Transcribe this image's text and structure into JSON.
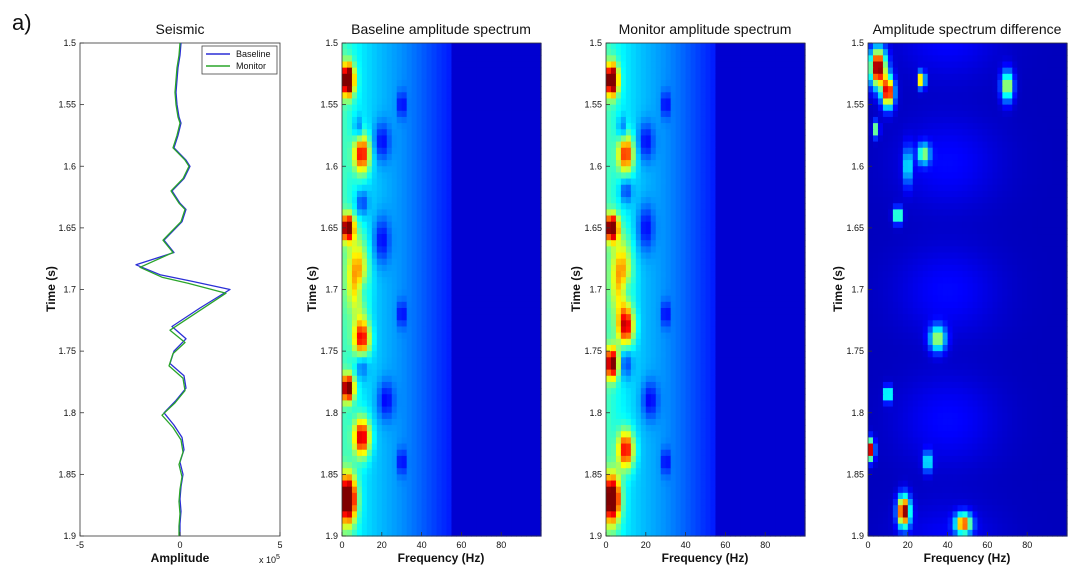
{
  "figure": {
    "panel_label": "a)"
  },
  "chart_data": [
    {
      "type": "line",
      "title": "Seismic",
      "xlabel": "Amplitude",
      "ylabel": "Time (s)",
      "xlim": [
        -5,
        5
      ],
      "ylim": [
        1.5,
        1.9
      ],
      "y_reversed": true,
      "x_ticks": [
        "-5",
        "0",
        "5"
      ],
      "x_exponent_label": "x 10",
      "x_exponent_power": "5",
      "y_ticks": [
        "1.5",
        "1.55",
        "1.6",
        "1.65",
        "1.7",
        "1.75",
        "1.8",
        "1.85",
        "1.9"
      ],
      "legend_position": "top-right",
      "series": [
        {
          "name": "Baseline",
          "color": "#2b2fd6",
          "points": [
            [
              0.05,
              1.5
            ],
            [
              0.0,
              1.51
            ],
            [
              -0.1,
              1.52
            ],
            [
              -0.15,
              1.53
            ],
            [
              -0.2,
              1.54
            ],
            [
              -0.15,
              1.55
            ],
            [
              -0.05,
              1.56
            ],
            [
              0.05,
              1.565
            ],
            [
              -0.1,
              1.575
            ],
            [
              -0.3,
              1.585
            ],
            [
              0.3,
              1.595
            ],
            [
              0.5,
              1.6
            ],
            [
              0.2,
              1.61
            ],
            [
              -0.4,
              1.62
            ],
            [
              0.0,
              1.63
            ],
            [
              0.3,
              1.635
            ],
            [
              0.1,
              1.645
            ],
            [
              -0.5,
              1.655
            ],
            [
              -0.8,
              1.66
            ],
            [
              -0.3,
              1.67
            ],
            [
              -2.2,
              1.68
            ],
            [
              -1.0,
              1.688
            ],
            [
              0.5,
              1.693
            ],
            [
              2.5,
              1.7
            ],
            [
              1.0,
              1.715
            ],
            [
              -0.4,
              1.73
            ],
            [
              0.3,
              1.74
            ],
            [
              -0.3,
              1.75
            ],
            [
              -0.5,
              1.76
            ],
            [
              0.2,
              1.77
            ],
            [
              0.3,
              1.78
            ],
            [
              -0.2,
              1.79
            ],
            [
              -0.8,
              1.8
            ],
            [
              -0.3,
              1.81
            ],
            [
              0.1,
              1.82
            ],
            [
              0.2,
              1.83
            ],
            [
              0.0,
              1.84
            ],
            [
              0.15,
              1.85
            ],
            [
              0.05,
              1.86
            ],
            [
              0.0,
              1.87
            ],
            [
              0.05,
              1.88
            ],
            [
              0.0,
              1.89
            ],
            [
              0.0,
              1.9
            ]
          ]
        },
        {
          "name": "Monitor",
          "color": "#2aa52a",
          "points": [
            [
              0.0,
              1.5
            ],
            [
              -0.05,
              1.51
            ],
            [
              -0.15,
              1.52
            ],
            [
              -0.2,
              1.53
            ],
            [
              -0.25,
              1.54
            ],
            [
              -0.2,
              1.55
            ],
            [
              -0.1,
              1.56
            ],
            [
              0.0,
              1.565
            ],
            [
              -0.15,
              1.575
            ],
            [
              -0.35,
              1.585
            ],
            [
              0.25,
              1.595
            ],
            [
              0.45,
              1.6
            ],
            [
              0.15,
              1.61
            ],
            [
              -0.45,
              1.62
            ],
            [
              -0.05,
              1.63
            ],
            [
              0.25,
              1.635
            ],
            [
              0.05,
              1.645
            ],
            [
              -0.55,
              1.655
            ],
            [
              -0.85,
              1.66
            ],
            [
              -0.35,
              1.67
            ],
            [
              -2.0,
              1.682
            ],
            [
              -0.9,
              1.69
            ],
            [
              0.4,
              1.695
            ],
            [
              2.3,
              1.703
            ],
            [
              0.9,
              1.718
            ],
            [
              -0.5,
              1.733
            ],
            [
              0.25,
              1.743
            ],
            [
              -0.35,
              1.752
            ],
            [
              -0.55,
              1.762
            ],
            [
              0.15,
              1.772
            ],
            [
              0.25,
              1.782
            ],
            [
              -0.25,
              1.792
            ],
            [
              -0.9,
              1.802
            ],
            [
              -0.35,
              1.812
            ],
            [
              0.05,
              1.822
            ],
            [
              0.15,
              1.832
            ],
            [
              -0.05,
              1.842
            ],
            [
              0.1,
              1.852
            ],
            [
              0.0,
              1.862
            ],
            [
              -0.05,
              1.872
            ],
            [
              0.0,
              1.882
            ],
            [
              -0.05,
              1.892
            ],
            [
              -0.05,
              1.9
            ]
          ]
        }
      ]
    },
    {
      "type": "heatmap",
      "title": "Baseline amplitude spectrum",
      "xlabel": "Frequency (Hz)",
      "ylabel": "Time (s)",
      "xlim": [
        0,
        100
      ],
      "ylim": [
        1.5,
        1.9
      ],
      "y_reversed": true,
      "x_ticks": [
        "0",
        "20",
        "40",
        "60",
        "80"
      ],
      "y_ticks": [
        "1.5",
        "1.55",
        "1.6",
        "1.65",
        "1.7",
        "1.75",
        "1.8",
        "1.85",
        "1.9"
      ],
      "colormap": "jet",
      "hotspots": [
        [
          3,
          1.53,
          3,
          0.012,
          0.9
        ],
        [
          3,
          1.87,
          4,
          0.018,
          0.85
        ],
        [
          3,
          1.65,
          3,
          0.01,
          0.75
        ],
        [
          3,
          1.78,
          3,
          0.01,
          0.75
        ],
        [
          10,
          1.59,
          4,
          0.015,
          0.55
        ],
        [
          10,
          1.74,
          4,
          0.015,
          0.55
        ],
        [
          10,
          1.82,
          4,
          0.015,
          0.6
        ],
        [
          8,
          1.69,
          5,
          0.03,
          0.4
        ]
      ],
      "cold_spots": [
        [
          20,
          1.58,
          4,
          0.015
        ],
        [
          20,
          1.66,
          4,
          0.018
        ],
        [
          22,
          1.79,
          4,
          0.015
        ],
        [
          10,
          1.63,
          3,
          0.01
        ],
        [
          10,
          1.7,
          3,
          0.012
        ],
        [
          10,
          1.76,
          3,
          0.012
        ],
        [
          8,
          1.57,
          2,
          0.01
        ],
        [
          30,
          1.55,
          2,
          0.01
        ],
        [
          30,
          1.72,
          2,
          0.01
        ],
        [
          30,
          1.84,
          2,
          0.01
        ]
      ]
    },
    {
      "type": "heatmap",
      "title": "Monitor amplitude spectrum",
      "xlabel": "Frequency (Hz)",
      "ylabel": "Time (s)",
      "xlim": [
        0,
        100
      ],
      "ylim": [
        1.5,
        1.9
      ],
      "y_reversed": true,
      "x_ticks": [
        "0",
        "20",
        "40",
        "60",
        "80"
      ],
      "y_ticks": [
        "1.5",
        "1.55",
        "1.6",
        "1.65",
        "1.7",
        "1.75",
        "1.8",
        "1.85",
        "1.9"
      ],
      "colormap": "jet",
      "hotspots": [
        [
          3,
          1.53,
          3,
          0.012,
          0.85
        ],
        [
          3,
          1.87,
          4,
          0.018,
          0.8
        ],
        [
          3,
          1.65,
          3,
          0.01,
          0.8
        ],
        [
          3,
          1.76,
          3,
          0.012,
          0.7
        ],
        [
          10,
          1.59,
          4,
          0.015,
          0.5
        ],
        [
          10,
          1.73,
          4,
          0.015,
          0.55
        ],
        [
          10,
          1.83,
          4,
          0.015,
          0.55
        ],
        [
          8,
          1.69,
          5,
          0.03,
          0.4
        ]
      ],
      "cold_spots": [
        [
          20,
          1.58,
          4,
          0.015
        ],
        [
          20,
          1.65,
          4,
          0.018
        ],
        [
          22,
          1.79,
          4,
          0.015
        ],
        [
          10,
          1.62,
          3,
          0.01
        ],
        [
          10,
          1.7,
          3,
          0.012
        ],
        [
          10,
          1.76,
          3,
          0.012
        ],
        [
          8,
          1.57,
          2,
          0.01
        ],
        [
          30,
          1.55,
          2,
          0.01
        ],
        [
          30,
          1.72,
          2,
          0.01
        ],
        [
          30,
          1.84,
          2,
          0.01
        ]
      ]
    },
    {
      "type": "heatmap",
      "title": "Amplitude spectrum difference",
      "xlabel": "Frequency (Hz)",
      "ylabel": "Time (s)",
      "xlim": [
        0,
        100
      ],
      "ylim": [
        1.5,
        1.9
      ],
      "y_reversed": true,
      "x_ticks": [
        "0",
        "20",
        "40",
        "60",
        "80"
      ],
      "y_ticks": [
        "1.5",
        "1.55",
        "1.6",
        "1.65",
        "1.7",
        "1.75",
        "1.8",
        "1.85",
        "1.9"
      ],
      "colormap": "jet",
      "hotspots": [
        [
          5,
          1.52,
          4,
          0.015,
          1.0
        ],
        [
          10,
          1.54,
          3,
          0.012,
          0.9
        ],
        [
          18,
          1.88,
          3,
          0.012,
          1.0
        ],
        [
          1,
          1.83,
          2,
          0.008,
          0.95
        ],
        [
          27,
          1.53,
          1.5,
          0.006,
          0.85
        ],
        [
          70,
          1.535,
          3,
          0.012,
          0.55
        ],
        [
          35,
          1.74,
          4,
          0.01,
          0.5
        ],
        [
          48,
          1.89,
          4,
          0.008,
          0.75
        ],
        [
          10,
          1.785,
          1.5,
          0.006,
          0.7
        ],
        [
          28,
          1.59,
          3,
          0.008,
          0.45
        ],
        [
          20,
          1.6,
          2,
          0.015,
          0.35
        ],
        [
          15,
          1.64,
          2,
          0.006,
          0.6
        ],
        [
          4,
          1.57,
          1.5,
          0.006,
          0.5
        ],
        [
          30,
          1.84,
          2,
          0.008,
          0.4
        ]
      ],
      "cold_spots": []
    }
  ]
}
